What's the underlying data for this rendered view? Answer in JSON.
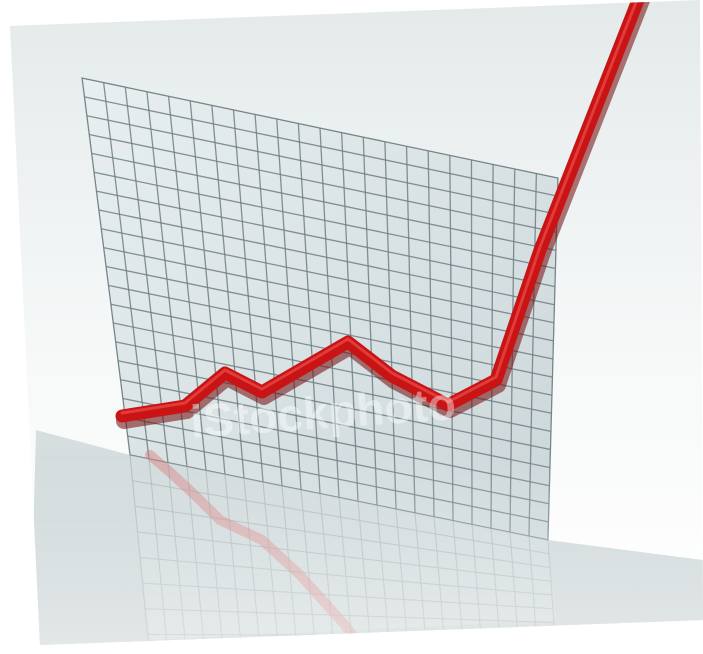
{
  "image": {
    "subject": "3d-rendered-line-chart-rising-sharply",
    "watermark_text": "iStockphoto",
    "colors": {
      "line": "#c81414",
      "line_shadow": "#7a0a0a",
      "grid_panel": "#dfe8e8",
      "grid_lines": "#6f7f84",
      "floor": "#cfd8d9",
      "background": "#ffffff"
    }
  }
}
